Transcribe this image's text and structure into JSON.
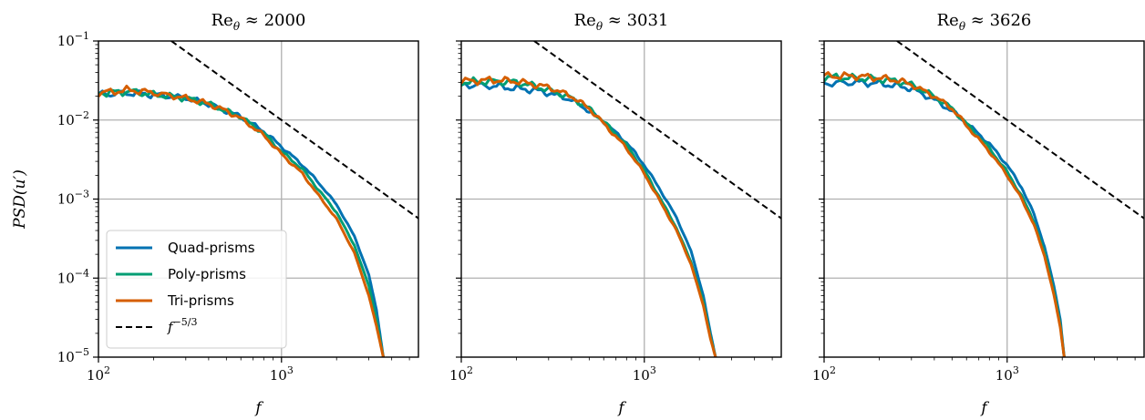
{
  "chart_data": {
    "type": "line",
    "xscale": "log",
    "yscale": "log",
    "xlim": [
      100,
      5600
    ],
    "ylim": [
      1e-05,
      0.1
    ],
    "grid": true,
    "xlabel": "f",
    "ylabel": "PSD(u′)",
    "x_ticks": [
      {
        "value": 100,
        "base": "10",
        "exp": "2"
      },
      {
        "value": 1000,
        "base": "10",
        "exp": "3"
      }
    ],
    "y_ticks": [
      {
        "value": 0.1,
        "base": "10",
        "exp": "−1"
      },
      {
        "value": 0.01,
        "base": "10",
        "exp": "−2"
      },
      {
        "value": 0.001,
        "base": "10",
        "exp": "−3"
      },
      {
        "value": 0.0001,
        "base": "10",
        "exp": "−4"
      },
      {
        "value": 1e-05,
        "base": "10",
        "exp": "−5"
      }
    ],
    "legend": {
      "placement": "lower-left",
      "panel": 0,
      "entries": [
        {
          "label": "Quad-prisms",
          "color": "#0072B2",
          "style": "solid"
        },
        {
          "label": "Poly-prisms",
          "color": "#009E73",
          "style": "solid"
        },
        {
          "label": "Tri-prisms",
          "color": "#D55E00",
          "style": "solid"
        },
        {
          "label_base": "f",
          "label_exp": "−5/3",
          "color": "#000000",
          "style": "dashed"
        }
      ]
    },
    "reference_line": {
      "name": "f^{-5/3}",
      "slope": -1.6667,
      "points": [
        [
          250,
          0.1
        ],
        [
          5600,
          0.00057
        ]
      ]
    },
    "panels": [
      {
        "title": "Re",
        "title_sub": "θ",
        "title_rest": " ≈ 2000",
        "series": [
          {
            "name": "Quad-prisms",
            "color": "#0072B2",
            "x": [
              100,
              150,
              200,
              300,
              400,
              500,
              600,
              800,
              1000,
              1300,
              1600,
              2000,
              2500,
              3000,
              3300,
              3600
            ],
            "y": [
              0.021,
              0.022,
              0.021,
              0.019,
              0.016,
              0.013,
              0.011,
              0.0072,
              0.0046,
              0.0027,
              0.0016,
              0.00085,
              0.00034,
              0.00011,
              4e-05,
              1e-05
            ]
          },
          {
            "name": "Poly-prisms",
            "color": "#009E73",
            "x": [
              100,
              150,
              200,
              300,
              400,
              500,
              600,
              800,
              1000,
              1300,
              1600,
              2000,
              2500,
              3000,
              3300,
              3600
            ],
            "y": [
              0.022,
              0.023,
              0.021,
              0.019,
              0.016,
              0.013,
              0.011,
              0.0068,
              0.004,
              0.0024,
              0.0013,
              0.00068,
              0.00026,
              8e-05,
              3e-05,
              1e-05
            ]
          },
          {
            "name": "Tri-prisms",
            "color": "#D55E00",
            "x": [
              100,
              150,
              200,
              300,
              400,
              500,
              600,
              800,
              1000,
              1300,
              1600,
              2000,
              2500,
              3000,
              3300,
              3600
            ],
            "y": [
              0.022,
              0.024,
              0.022,
              0.019,
              0.016,
              0.013,
              0.0105,
              0.0064,
              0.0037,
              0.0021,
              0.0011,
              0.00056,
              0.00021,
              6e-05,
              2.5e-05,
              1e-05
            ]
          }
        ]
      },
      {
        "title": "Re",
        "title_sub": "θ",
        "title_rest": " ≈ 3031",
        "series": [
          {
            "name": "Quad-prisms",
            "color": "#0072B2",
            "x": [
              100,
              150,
              200,
              250,
              300,
              400,
              500,
              600,
              800,
              1000,
              1200,
              1500,
              1800,
              2100,
              2300,
              2450
            ],
            "y": [
              0.028,
              0.027,
              0.025,
              0.024,
              0.022,
              0.018,
              0.013,
              0.0095,
              0.0052,
              0.0027,
              0.0014,
              0.00058,
              0.00022,
              6e-05,
              2e-05,
              1e-05
            ]
          },
          {
            "name": "Poly-prisms",
            "color": "#009E73",
            "x": [
              100,
              150,
              200,
              250,
              300,
              400,
              500,
              600,
              800,
              1000,
              1200,
              1500,
              1800,
              2100,
              2300,
              2450
            ],
            "y": [
              0.03,
              0.031,
              0.03,
              0.027,
              0.024,
              0.019,
              0.014,
              0.0096,
              0.0048,
              0.0023,
              0.0011,
              0.00043,
              0.00016,
              5e-05,
              1.8e-05,
              1e-05
            ]
          },
          {
            "name": "Tri-prisms",
            "color": "#D55E00",
            "x": [
              100,
              150,
              200,
              250,
              300,
              400,
              500,
              600,
              800,
              1000,
              1200,
              1500,
              1800,
              2100,
              2300,
              2450
            ],
            "y": [
              0.031,
              0.032,
              0.031,
              0.028,
              0.026,
              0.02,
              0.014,
              0.009,
              0.0044,
              0.0021,
              0.001,
              0.0004,
              0.00015,
              4.5e-05,
              1.7e-05,
              1e-05
            ]
          }
        ]
      },
      {
        "title": "Re",
        "title_sub": "θ",
        "title_rest": " ≈ 3626",
        "series": [
          {
            "name": "Quad-prisms",
            "color": "#0072B2",
            "x": [
              100,
              150,
              200,
              250,
              300,
              400,
              500,
              600,
              800,
              1000,
              1200,
              1400,
              1600,
              1800,
              1950,
              2050
            ],
            "y": [
              0.029,
              0.03,
              0.029,
              0.027,
              0.025,
              0.018,
              0.013,
              0.0092,
              0.005,
              0.0027,
              0.0014,
              0.00065,
              0.00025,
              8e-05,
              3e-05,
              1e-05
            ]
          },
          {
            "name": "Poly-prisms",
            "color": "#009E73",
            "x": [
              100,
              150,
              200,
              250,
              300,
              400,
              500,
              600,
              800,
              1000,
              1200,
              1400,
              1600,
              1800,
              1950,
              2050
            ],
            "y": [
              0.035,
              0.034,
              0.033,
              0.031,
              0.028,
              0.02,
              0.014,
              0.009,
              0.0044,
              0.0022,
              0.0011,
              0.00052,
              0.00021,
              6.8e-05,
              2.6e-05,
              1e-05
            ]
          },
          {
            "name": "Tri-prisms",
            "color": "#D55E00",
            "x": [
              100,
              150,
              200,
              250,
              300,
              400,
              500,
              600,
              800,
              1000,
              1200,
              1400,
              1600,
              1800,
              1950,
              2050
            ],
            "y": [
              0.036,
              0.036,
              0.034,
              0.032,
              0.028,
              0.02,
              0.014,
              0.0085,
              0.004,
              0.002,
              0.001,
              0.00048,
              0.00019,
              6.2e-05,
              2.4e-05,
              1e-05
            ]
          }
        ]
      }
    ]
  }
}
